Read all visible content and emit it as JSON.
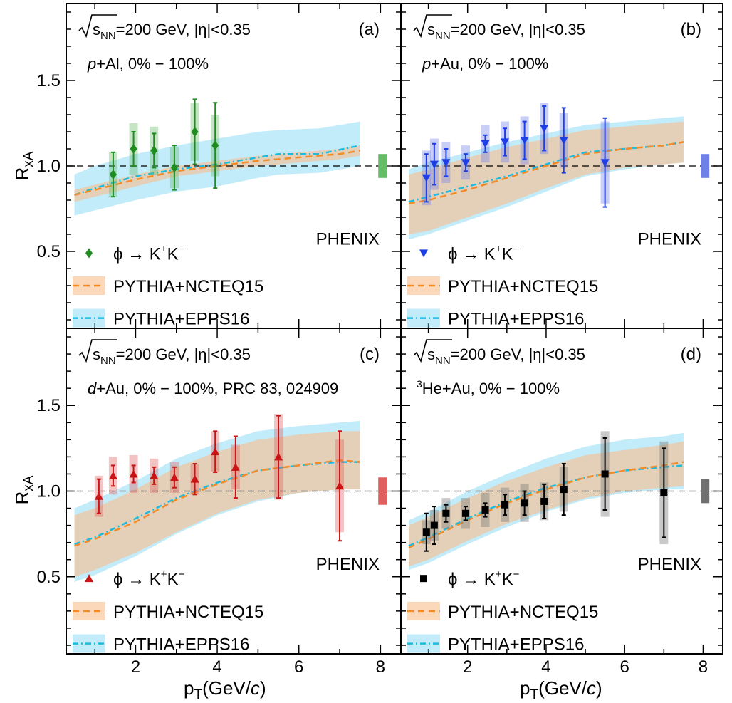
{
  "figure": {
    "x_axis_label": "p",
    "x_axis_label_sub": "T",
    "x_axis_label_unit_open": "(GeV/",
    "x_axis_label_unit_c": "c",
    "x_axis_label_unit_close": ")",
    "y_axis_label_main": "R",
    "y_axis_label_sub": "xA",
    "sqrt_s": "s",
    "sqrt_s_sub": "NN",
    "energy_eta": "=200 GeV, |η|<0.35",
    "experiment": "PHENIX",
    "legend_phi": "ϕ → K",
    "legend_kplus_sup": "+",
    "legend_k": "K",
    "legend_kminus_sup": "−",
    "legend_nnpdf": "PYTHIA+NCTEQ15",
    "legend_epps": "PYTHIA+EPPS16"
  },
  "chart_data": [
    {
      "type": "scatter",
      "panel": "(a)",
      "system_label": "p+Al, 0% − 100%",
      "color": "#1e8c1e",
      "marker": "diamond",
      "norm_color": "#66bb66",
      "xlim": [
        0.3,
        8.5
      ],
      "ylim": [
        0.05,
        1.95
      ],
      "xticks": [
        2,
        4,
        6,
        8
      ],
      "yticks": [
        0.5,
        1.0,
        1.5
      ],
      "data": [
        {
          "x": 1.45,
          "y": 0.95,
          "stat": 0.13,
          "sys": 0.13
        },
        {
          "x": 1.95,
          "y": 1.1,
          "stat": 0.1,
          "sys": 0.15
        },
        {
          "x": 2.45,
          "y": 1.09,
          "stat": 0.1,
          "sys": 0.14
        },
        {
          "x": 2.95,
          "y": 0.99,
          "stat": 0.13,
          "sys": 0.12
        },
        {
          "x": 3.45,
          "y": 1.2,
          "stat": 0.19,
          "sys": 0.17
        },
        {
          "x": 3.95,
          "y": 1.12,
          "stat": 0.25,
          "sys": 0.18
        }
      ],
      "norm": 0.07,
      "nnpdf": {
        "x": [
          0.5,
          1,
          2,
          3,
          4,
          5,
          6,
          7,
          7.5
        ],
        "y": [
          0.83,
          0.86,
          0.92,
          0.97,
          1.0,
          1.03,
          1.05,
          1.07,
          1.09
        ],
        "lo": [
          0.79,
          0.82,
          0.88,
          0.94,
          0.97,
          1.0,
          1.02,
          1.04,
          1.06
        ],
        "hi": [
          0.86,
          0.89,
          0.95,
          1.0,
          1.03,
          1.06,
          1.08,
          1.1,
          1.12
        ]
      },
      "epps": {
        "x": [
          0.5,
          1,
          2,
          3,
          4,
          5,
          5.5,
          6.5,
          7.5
        ],
        "y": [
          0.83,
          0.87,
          0.94,
          0.98,
          1.01,
          1.05,
          1.07,
          1.07,
          1.12
        ],
        "lo": [
          0.71,
          0.74,
          0.8,
          0.85,
          0.88,
          0.93,
          0.95,
          0.96,
          1.0
        ],
        "hi": [
          0.95,
          1.0,
          1.07,
          1.12,
          1.16,
          1.2,
          1.21,
          1.22,
          1.26
        ]
      }
    },
    {
      "type": "scatter",
      "panel": "(b)",
      "system_label": "p+Au, 0% − 100%",
      "color": "#1f3fe6",
      "marker": "triangle-down",
      "norm_color": "#6f7fe8",
      "xlim": [
        0.3,
        8.5
      ],
      "ylim": [
        0.05,
        1.95
      ],
      "xticks": [
        2,
        4,
        6,
        8
      ],
      "yticks": [
        0.5,
        1.0,
        1.5
      ],
      "data": [
        {
          "x": 0.95,
          "y": 0.93,
          "stat": 0.14,
          "sys": 0.16
        },
        {
          "x": 1.15,
          "y": 1.01,
          "stat": 0.12,
          "sys": 0.15
        },
        {
          "x": 1.45,
          "y": 1.02,
          "stat": 0.08,
          "sys": 0.12
        },
        {
          "x": 1.95,
          "y": 1.02,
          "stat": 0.05,
          "sys": 0.1
        },
        {
          "x": 2.45,
          "y": 1.13,
          "stat": 0.05,
          "sys": 0.11
        },
        {
          "x": 2.95,
          "y": 1.14,
          "stat": 0.08,
          "sys": 0.12
        },
        {
          "x": 3.45,
          "y": 1.15,
          "stat": 0.11,
          "sys": 0.14
        },
        {
          "x": 3.95,
          "y": 1.22,
          "stat": 0.13,
          "sys": 0.15
        },
        {
          "x": 4.45,
          "y": 1.15,
          "stat": 0.19,
          "sys": 0.16
        },
        {
          "x": 5.5,
          "y": 1.02,
          "stat": 0.26,
          "sys": 0.24
        }
      ],
      "norm": 0.07,
      "nnpdf": {
        "x": [
          0.5,
          1,
          2,
          3,
          4,
          5,
          6,
          7,
          7.5
        ],
        "y": [
          0.78,
          0.8,
          0.86,
          0.93,
          1.0,
          1.07,
          1.1,
          1.12,
          1.14
        ],
        "lo": [
          0.6,
          0.62,
          0.7,
          0.78,
          0.87,
          0.95,
          0.99,
          1.01,
          1.02
        ],
        "hi": [
          0.95,
          0.98,
          1.05,
          1.11,
          1.16,
          1.21,
          1.23,
          1.25,
          1.26
        ]
      },
      "epps": {
        "x": [
          0.5,
          1,
          2,
          3,
          4,
          5,
          6,
          7,
          7.5
        ],
        "y": [
          0.79,
          0.82,
          0.88,
          0.94,
          1.01,
          1.08,
          1.1,
          1.12,
          1.14
        ],
        "lo": [
          0.57,
          0.6,
          0.68,
          0.76,
          0.85,
          0.94,
          0.98,
          1.01,
          1.02
        ],
        "hi": [
          0.98,
          1.02,
          1.08,
          1.14,
          1.19,
          1.24,
          1.26,
          1.28,
          1.29
        ]
      }
    },
    {
      "type": "scatter",
      "panel": "(c)",
      "system_label": "d+Au, 0% − 100%, PRC 83, 024909",
      "color": "#c81414",
      "marker": "triangle-up",
      "norm_color": "#e06060",
      "xlim": [
        0.3,
        8.5
      ],
      "ylim": [
        0.05,
        1.95
      ],
      "xticks": [
        2,
        4,
        6,
        8
      ],
      "yticks": [
        0.5,
        1.0,
        1.5
      ],
      "data": [
        {
          "x": 1.1,
          "y": 0.97,
          "stat": 0.1,
          "sys": 0.12
        },
        {
          "x": 1.45,
          "y": 1.09,
          "stat": 0.06,
          "sys": 0.11
        },
        {
          "x": 1.95,
          "y": 1.1,
          "stat": 0.05,
          "sys": 0.11
        },
        {
          "x": 2.45,
          "y": 1.09,
          "stat": 0.05,
          "sys": 0.1
        },
        {
          "x": 2.95,
          "y": 1.08,
          "stat": 0.06,
          "sys": 0.09
        },
        {
          "x": 3.45,
          "y": 1.07,
          "stat": 0.09,
          "sys": 0.09
        },
        {
          "x": 3.95,
          "y": 1.23,
          "stat": 0.12,
          "sys": 0.12
        },
        {
          "x": 4.45,
          "y": 1.14,
          "stat": 0.18,
          "sys": 0.13
        },
        {
          "x": 5.5,
          "y": 1.2,
          "stat": 0.24,
          "sys": 0.25
        },
        {
          "x": 7.0,
          "y": 1.03,
          "stat": 0.32,
          "sys": 0.27
        }
      ],
      "norm": 0.08,
      "nnpdf": {
        "x": [
          0.5,
          1,
          2,
          3,
          4,
          5,
          6,
          7,
          7.5
        ],
        "y": [
          0.68,
          0.72,
          0.82,
          0.95,
          1.04,
          1.12,
          1.15,
          1.18,
          1.17
        ],
        "lo": [
          0.5,
          0.54,
          0.64,
          0.76,
          0.87,
          0.95,
          0.99,
          1.01,
          1.01
        ],
        "hi": [
          0.86,
          0.9,
          1.01,
          1.14,
          1.23,
          1.3,
          1.33,
          1.35,
          1.35
        ]
      },
      "epps": {
        "x": [
          0.5,
          1,
          2,
          3,
          4,
          5,
          6,
          7,
          7.5
        ],
        "y": [
          0.69,
          0.73,
          0.84,
          0.96,
          1.05,
          1.12,
          1.15,
          1.17,
          1.17
        ],
        "lo": [
          0.47,
          0.51,
          0.62,
          0.75,
          0.86,
          0.94,
          0.99,
          1.01,
          1.01
        ],
        "hi": [
          0.9,
          0.95,
          1.06,
          1.19,
          1.28,
          1.35,
          1.38,
          1.4,
          1.41
        ]
      }
    },
    {
      "type": "scatter",
      "panel": "(d)",
      "system_label": "He+Au, 0% − 100%",
      "system_label_sup": "3",
      "color": "#000000",
      "marker": "square",
      "norm_color": "#707070",
      "xlim": [
        0.3,
        8.5
      ],
      "ylim": [
        0.05,
        1.95
      ],
      "xticks": [
        2,
        4,
        6,
        8
      ],
      "yticks": [
        0.5,
        1.0,
        1.5
      ],
      "data": [
        {
          "x": 0.95,
          "y": 0.76,
          "stat": 0.11,
          "sys": 0.07
        },
        {
          "x": 1.15,
          "y": 0.8,
          "stat": 0.11,
          "sys": 0.09
        },
        {
          "x": 1.45,
          "y": 0.87,
          "stat": 0.05,
          "sys": 0.09
        },
        {
          "x": 1.95,
          "y": 0.87,
          "stat": 0.04,
          "sys": 0.09
        },
        {
          "x": 2.45,
          "y": 0.89,
          "stat": 0.04,
          "sys": 0.1
        },
        {
          "x": 2.95,
          "y": 0.92,
          "stat": 0.06,
          "sys": 0.1
        },
        {
          "x": 3.45,
          "y": 0.93,
          "stat": 0.07,
          "sys": 0.11
        },
        {
          "x": 3.95,
          "y": 0.94,
          "stat": 0.1,
          "sys": 0.11
        },
        {
          "x": 4.45,
          "y": 1.01,
          "stat": 0.15,
          "sys": 0.13
        },
        {
          "x": 5.5,
          "y": 1.1,
          "stat": 0.21,
          "sys": 0.25
        },
        {
          "x": 7.0,
          "y": 0.99,
          "stat": 0.26,
          "sys": 0.3
        }
      ],
      "norm": 0.07,
      "nnpdf": {
        "x": [
          0.5,
          1,
          2,
          3,
          4,
          5,
          6,
          7,
          7.5
        ],
        "y": [
          0.67,
          0.72,
          0.83,
          0.93,
          1.01,
          1.08,
          1.12,
          1.15,
          1.17
        ],
        "lo": [
          0.56,
          0.6,
          0.71,
          0.81,
          0.89,
          0.96,
          1.0,
          1.02,
          1.03
        ],
        "hi": [
          0.8,
          0.85,
          0.96,
          1.06,
          1.14,
          1.21,
          1.24,
          1.27,
          1.29
        ]
      },
      "epps": {
        "x": [
          0.5,
          1,
          2,
          3,
          4,
          5,
          6,
          7,
          7.5
        ],
        "y": [
          0.68,
          0.73,
          0.84,
          0.94,
          1.02,
          1.08,
          1.12,
          1.14,
          1.15
        ],
        "lo": [
          0.54,
          0.58,
          0.69,
          0.79,
          0.88,
          0.95,
          0.99,
          1.01,
          1.01
        ],
        "hi": [
          0.83,
          0.88,
          1.0,
          1.1,
          1.19,
          1.26,
          1.3,
          1.32,
          1.34
        ]
      }
    }
  ]
}
